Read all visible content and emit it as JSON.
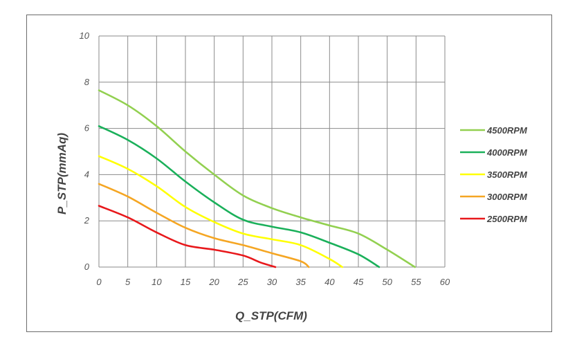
{
  "chart_data": {
    "type": "line",
    "title": "",
    "xlabel": "Q_STP(CFM)",
    "ylabel": "P_STP(mmAq)",
    "xlim": [
      0,
      60
    ],
    "ylim": [
      0,
      10
    ],
    "xticks": [
      "0",
      "5",
      "10",
      "15",
      "20",
      "25",
      "30",
      "35",
      "40",
      "45",
      "50",
      "55",
      "60"
    ],
    "yticks": [
      "0",
      "2",
      "4",
      "6",
      "8",
      "10"
    ],
    "grid": true,
    "legend_position": "right",
    "series": [
      {
        "name": "4500RPM",
        "color": "#92d050",
        "points": [
          [
            0,
            7.65
          ],
          [
            5,
            7.0
          ],
          [
            10,
            6.1
          ],
          [
            15,
            5.0
          ],
          [
            20,
            4.0
          ],
          [
            25,
            3.1
          ],
          [
            30,
            2.55
          ],
          [
            35,
            2.15
          ],
          [
            40,
            1.8
          ],
          [
            45,
            1.45
          ],
          [
            50,
            0.75
          ],
          [
            54.8,
            0
          ]
        ]
      },
      {
        "name": "4000RPM",
        "color": "#1ab05a",
        "points": [
          [
            0,
            6.1
          ],
          [
            5,
            5.5
          ],
          [
            10,
            4.7
          ],
          [
            15,
            3.7
          ],
          [
            20,
            2.8
          ],
          [
            25,
            2.05
          ],
          [
            30,
            1.75
          ],
          [
            35,
            1.5
          ],
          [
            40,
            1.05
          ],
          [
            45,
            0.55
          ],
          [
            48.6,
            0
          ]
        ]
      },
      {
        "name": "3500RPM",
        "color": "#ffff00",
        "points": [
          [
            0,
            4.8
          ],
          [
            5,
            4.25
          ],
          [
            10,
            3.5
          ],
          [
            15,
            2.6
          ],
          [
            20,
            1.95
          ],
          [
            25,
            1.45
          ],
          [
            30,
            1.2
          ],
          [
            35,
            0.95
          ],
          [
            40,
            0.35
          ],
          [
            42.2,
            0
          ]
        ]
      },
      {
        "name": "3000RPM",
        "color": "#f5a623",
        "points": [
          [
            0,
            3.6
          ],
          [
            5,
            3.05
          ],
          [
            10,
            2.35
          ],
          [
            15,
            1.7
          ],
          [
            20,
            1.25
          ],
          [
            25,
            0.95
          ],
          [
            30,
            0.6
          ],
          [
            35,
            0.25
          ],
          [
            36.4,
            0
          ]
        ]
      },
      {
        "name": "2500RPM",
        "color": "#e8181b",
        "points": [
          [
            0,
            2.65
          ],
          [
            5,
            2.15
          ],
          [
            10,
            1.5
          ],
          [
            15,
            0.95
          ],
          [
            20,
            0.75
          ],
          [
            25,
            0.5
          ],
          [
            28,
            0.2
          ],
          [
            30.6,
            0
          ]
        ]
      }
    ]
  }
}
